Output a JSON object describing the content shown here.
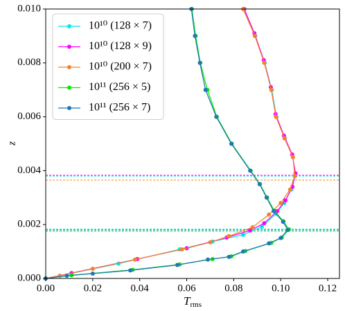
{
  "chart_data": {
    "type": "line",
    "xlabel": "T",
    "xlabel_subscript": "rms",
    "ylabel": "z",
    "xlim": [
      0,
      0.125
    ],
    "ylim": [
      0,
      0.01
    ],
    "xticks": [
      {
        "value": 0,
        "label": "0.00"
      },
      0.02,
      0.04,
      0.06,
      0.08,
      {
        "value": 0.1,
        "label": "0.10"
      },
      {
        "value": 0.12,
        "label": "0.12"
      }
    ],
    "yticks": [
      {
        "value": 0,
        "label": "0.000"
      },
      0.002,
      0.004,
      0.006,
      0.008,
      {
        "value": 0.01,
        "label": "0.010"
      }
    ],
    "legend": "upper left",
    "series": [
      {
        "name": "10¹⁰ (128 × 7)",
        "color": "#00e8e8",
        "x": [
          0,
          0.006,
          0.031,
          0.057,
          0.071,
          0.084,
          0.092,
          0.098,
          0.1015,
          0.1045,
          0.1062,
          0.1052,
          0.1018,
          0.0982,
          0.0962,
          0.0932,
          0.0892,
          0.0843
        ],
        "values": [
          0,
          0.0001,
          0.00055,
          0.00108,
          0.00137,
          0.00162,
          0.00192,
          0.0024,
          0.0028,
          0.0033,
          0.0038,
          0.0045,
          0.0052,
          0.006,
          0.007,
          0.008,
          0.009,
          0.01
        ]
      },
      {
        "name": "10¹⁰ (128 × 9)",
        "color": "#ff00ff",
        "x": [
          0,
          0.011,
          0.039,
          0.06,
          0.077,
          0.087,
          0.093,
          0.0985,
          0.102,
          0.105,
          0.1063,
          0.1049,
          0.1014,
          0.0978,
          0.0958,
          0.0928,
          0.0888,
          0.0845
        ],
        "values": [
          0,
          0.0002,
          0.00072,
          0.00112,
          0.00152,
          0.00178,
          0.00205,
          0.0025,
          0.0029,
          0.0034,
          0.0039,
          0.0046,
          0.0053,
          0.0061,
          0.0071,
          0.0081,
          0.0091,
          0.01
        ]
      },
      {
        "name": "10¹⁰ (200 × 7)",
        "color": "#f5822a",
        "x": [
          0,
          0.006,
          0.02,
          0.038,
          0.058,
          0.07,
          0.078,
          0.088,
          0.095,
          0.1,
          0.104,
          0.106,
          0.1052,
          0.1016,
          0.098,
          0.096,
          0.093,
          0.089,
          0.084
        ],
        "values": [
          0,
          0.0001,
          0.00036,
          0.0007,
          0.00108,
          0.00134,
          0.00157,
          0.0019,
          0.00237,
          0.0028,
          0.0033,
          0.0038,
          0.0045,
          0.0052,
          0.006,
          0.007,
          0.008,
          0.009,
          0.01
        ]
      },
      {
        "name": "10¹¹ (256 × 5)",
        "color": "#00ee00",
        "x": [
          0,
          0.011,
          0.037,
          0.057,
          0.071,
          0.079,
          0.085,
          0.096,
          0.1005,
          0.1035,
          0.1012,
          0.0972,
          0.0942,
          0.0912,
          0.0872,
          0.0792,
          0.0728,
          0.0688,
          0.0658,
          0.0638,
          0.0622
        ],
        "values": [
          0,
          0.00012,
          0.00032,
          0.00052,
          0.00072,
          0.00082,
          0.00102,
          0.00132,
          0.00152,
          0.00182,
          0.00212,
          0.00252,
          0.003,
          0.0035,
          0.004,
          0.005,
          0.006,
          0.007,
          0.008,
          0.009,
          0.01
        ]
      },
      {
        "name": "10¹¹ (256 × 7)",
        "color": "#1f77b4",
        "x": [
          0,
          0.009,
          0.02,
          0.036,
          0.056,
          0.069,
          0.078,
          0.084,
          0.095,
          0.1,
          0.103,
          0.101,
          0.097,
          0.094,
          0.091,
          0.087,
          0.079,
          0.0726,
          0.068,
          0.0656,
          0.0635,
          0.062
        ],
        "values": [
          0,
          0.0001,
          0.00018,
          0.0003,
          0.0005,
          0.0007,
          0.0008,
          0.001,
          0.0013,
          0.0015,
          0.0018,
          0.0021,
          0.0025,
          0.003,
          0.0035,
          0.004,
          0.005,
          0.006,
          0.007,
          0.008,
          0.009,
          0.01
        ]
      }
    ],
    "hlines": [
      {
        "value": 0.00383,
        "color": "#ff00ff"
      },
      {
        "value": 0.0038,
        "color": "#00e8e8"
      },
      {
        "value": 0.00365,
        "color": "#f5822a"
      },
      {
        "value": 0.00183,
        "color": "#00e8e8"
      },
      {
        "value": 0.0018,
        "color": "#1f77b4"
      },
      {
        "value": 0.00175,
        "color": "#00ee00"
      }
    ]
  }
}
